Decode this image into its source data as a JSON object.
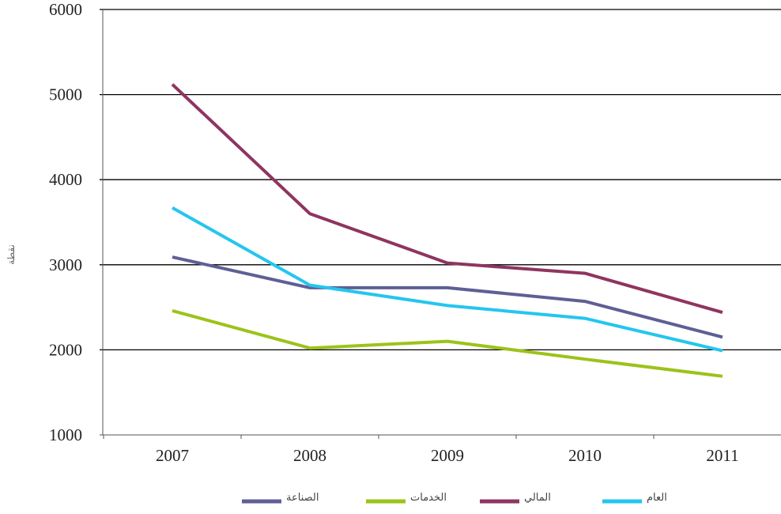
{
  "chart_data": {
    "type": "line",
    "title": "",
    "xlabel": "",
    "ylabel": "نقطة",
    "categories": [
      "2007",
      "2008",
      "2009",
      "2010",
      "2011"
    ],
    "ylim": [
      1000,
      6000
    ],
    "yticks": [
      "1000",
      "2000",
      "3000",
      "4000",
      "5000",
      "6000"
    ],
    "grid": true,
    "legend_position": "bottom",
    "series": [
      {
        "name": "الصناعة",
        "color": "#5f5f96",
        "values": [
          3090,
          2730,
          2730,
          2570,
          2150
        ]
      },
      {
        "name": "الخدمات",
        "color": "#9bc31a",
        "values": [
          2460,
          2020,
          2100,
          1890,
          1690
        ]
      },
      {
        "name": "المالي",
        "color": "#8e3560",
        "values": [
          5120,
          3600,
          3020,
          2900,
          2440
        ]
      },
      {
        "name": "العام",
        "color": "#24c6ee",
        "values": [
          3670,
          2760,
          2520,
          2370,
          1990
        ]
      }
    ]
  }
}
